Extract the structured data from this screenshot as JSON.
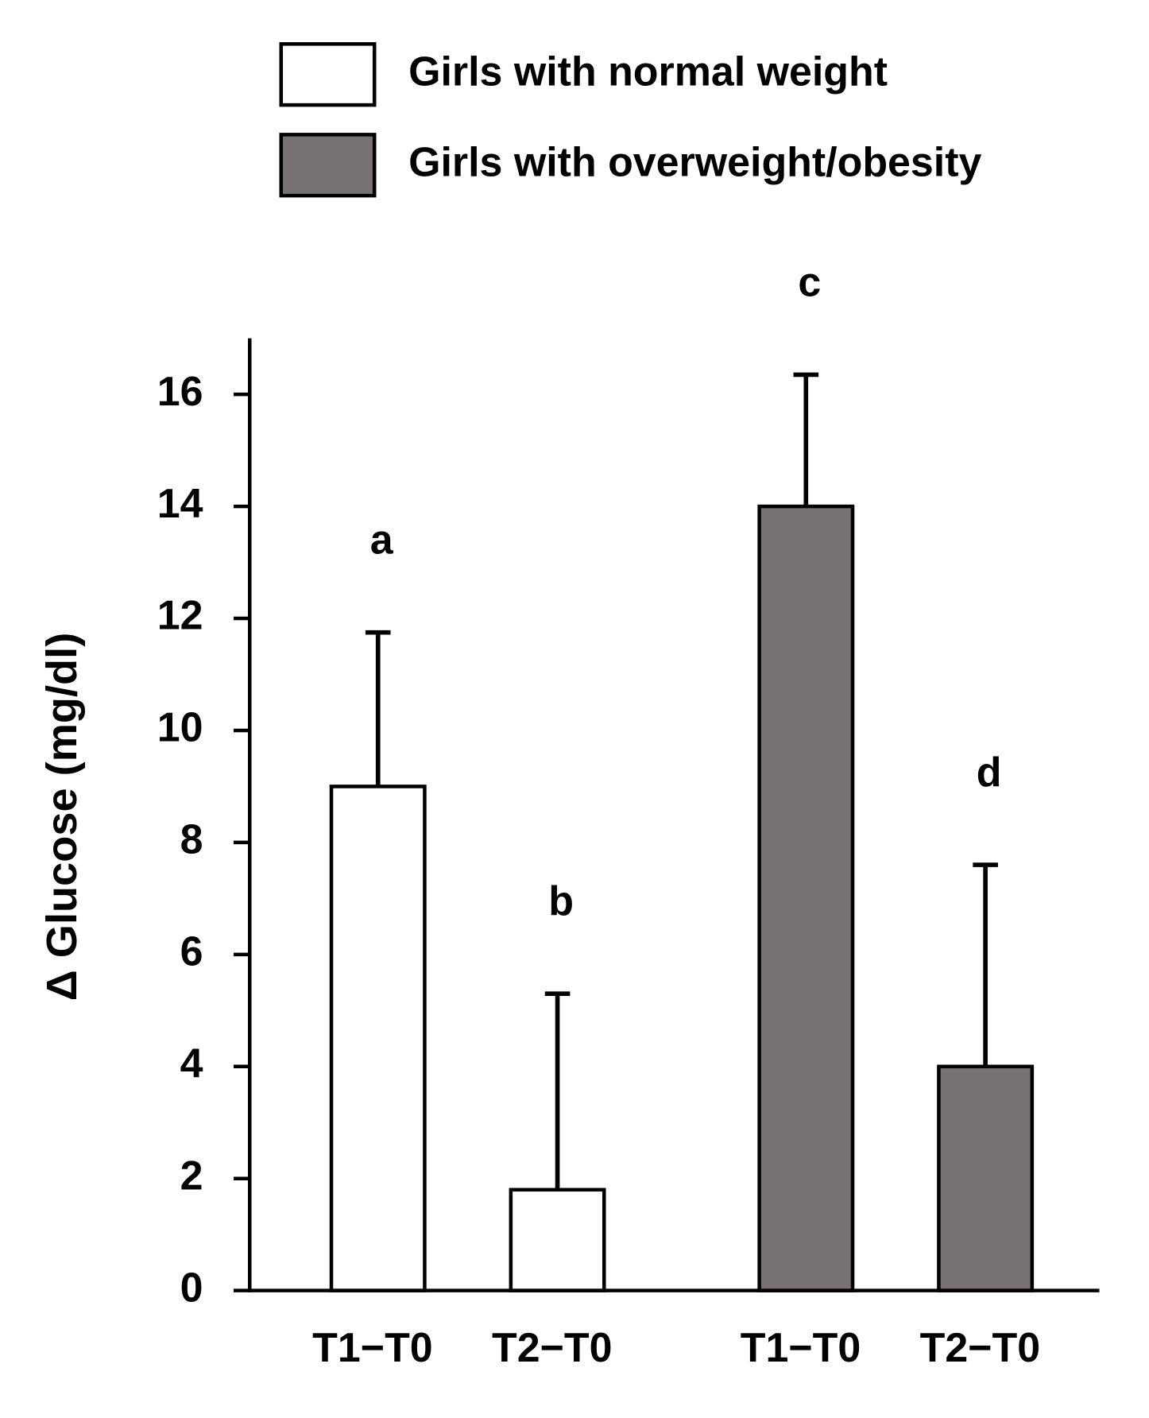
{
  "chart_data": {
    "type": "bar",
    "ylabel": "Δ Glucose (mg/dl)",
    "categories": [
      "T1−T0",
      "T2−T0",
      "T1−T0",
      "T2−T0"
    ],
    "series": [
      {
        "name": "Girls with normal weight",
        "color": "#ffffff",
        "values": [
          9,
          1.8,
          null,
          null
        ],
        "errors": [
          2.75,
          3.5,
          null,
          null
        ]
      },
      {
        "name": "Girls with overweight/obesity",
        "color": "#787372",
        "values": [
          null,
          null,
          14,
          4
        ],
        "errors": [
          null,
          null,
          2.35,
          3.6
        ]
      }
    ],
    "annotations": [
      "a",
      "b",
      "c",
      "d"
    ],
    "ylim": [
      0,
      17
    ],
    "yticks": [
      0,
      2,
      4,
      6,
      8,
      10,
      12,
      14,
      16
    ],
    "grid": false
  }
}
